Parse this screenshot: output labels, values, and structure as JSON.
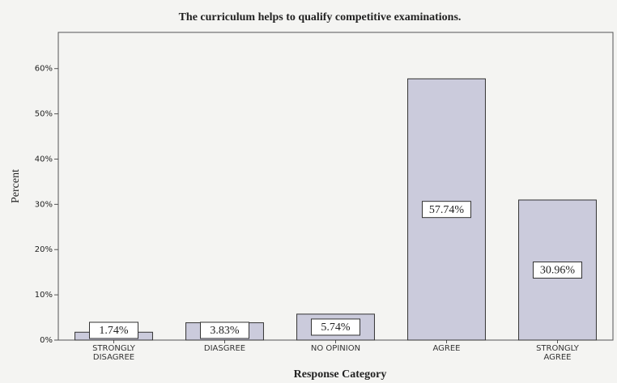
{
  "chart_data": {
    "type": "bar",
    "title": "The curriculum helps to qualify competitive examinations.",
    "x_label": "Response Category",
    "y_label": "Percent",
    "categories": [
      "STRONGLY DISAGREE",
      "DIASGREE",
      "NO OPINION",
      "AGREE",
      "STRONGLY AGREE"
    ],
    "values": [
      1.74,
      3.83,
      5.74,
      57.74,
      30.96
    ],
    "value_labels": [
      "1.74%",
      "3.83%",
      "5.74%",
      "57.74%",
      "30.96%"
    ],
    "color": "#cbcbdc",
    "ylim": [
      0,
      68
    ],
    "yticks": [
      {
        "value": 0,
        "label": "0%"
      },
      {
        "value": 10,
        "label": "10%"
      },
      {
        "value": 20,
        "label": "20%"
      },
      {
        "value": 30,
        "label": "30%"
      },
      {
        "value": 40,
        "label": "40%"
      },
      {
        "value": 50,
        "label": "50%"
      },
      {
        "value": 60,
        "label": "60%"
      }
    ]
  }
}
